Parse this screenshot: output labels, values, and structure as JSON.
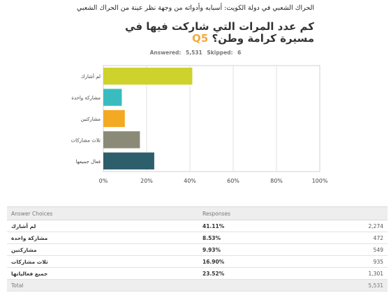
{
  "document_header": "الحراك الشعبي في دولة الكويت: أسبابه وأدواته من وجهة نظر عينة من الحراك الشعبي",
  "question": {
    "number": "Q5",
    "text": "كم عدد المرات التي شاركت فيها في مسيرة كرامة وطن؟"
  },
  "meta": {
    "answered_label": "Answered:",
    "answered_value": "5,531",
    "skipped_label": "Skipped:",
    "skipped_value": "6"
  },
  "chart_data": {
    "type": "bar",
    "orientation": "horizontal",
    "categories": [
      "لم أشارك",
      "مشاركة واحدة",
      "مشاركتين",
      "ثلاث مشاركات",
      "فعال جميعها"
    ],
    "values": [
      41.11,
      8.53,
      9.93,
      16.9,
      23.52
    ],
    "colors": [
      "#cdd22c",
      "#39bcc0",
      "#f4a922",
      "#8b8a78",
      "#2d5e6c"
    ],
    "x_ticks": [
      "0%",
      "20%",
      "40%",
      "60%",
      "80%",
      "100%"
    ],
    "xlim": [
      0,
      100
    ],
    "grid": true
  },
  "table": {
    "headers": [
      "Answer Choices",
      "Responses",
      ""
    ],
    "rows": [
      [
        "لم أشارك",
        "41.11%",
        "2,274"
      ],
      [
        "مشاركة واحدة",
        "8.53%",
        "472"
      ],
      [
        "مشاركتين",
        "9.93%",
        "549"
      ],
      [
        "ثلاث مشاركات",
        "16.90%",
        "935"
      ],
      [
        "جميع فعالياتها",
        "23.52%",
        "1,301"
      ]
    ],
    "total_label": "Total",
    "total_value": "5,531"
  }
}
